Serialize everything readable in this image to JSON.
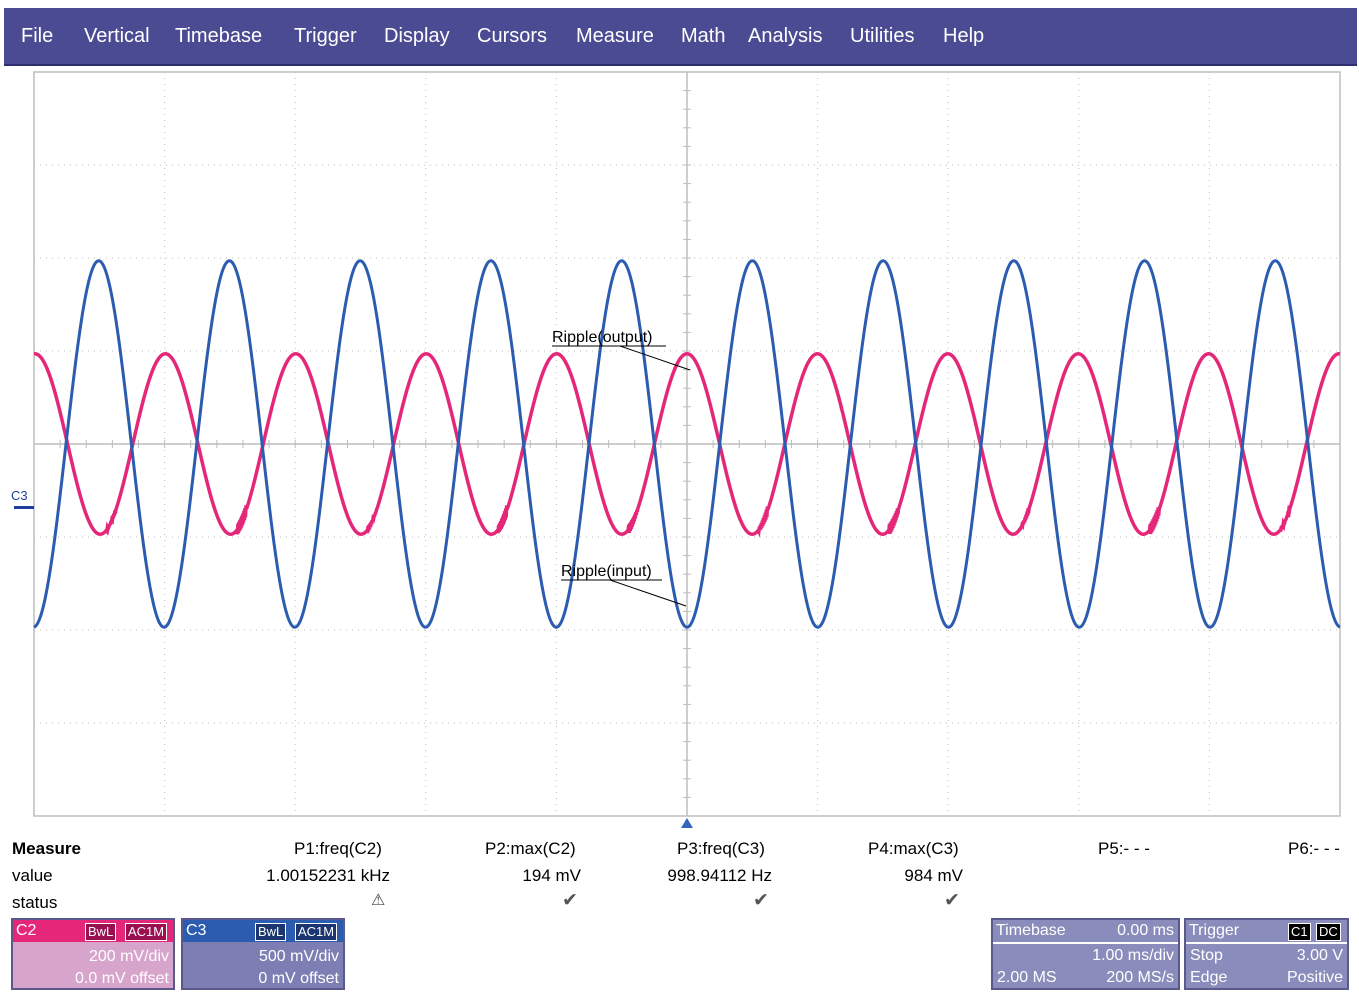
{
  "menu": {
    "items": [
      "File",
      "Vertical",
      "Timebase",
      "Trigger",
      "Display",
      "Cursors",
      "Measure",
      "Math",
      "Analysis",
      "Utilities",
      "Help"
    ]
  },
  "colors": {
    "menu_bg": "#4b4b93",
    "c2_trace": "#e5277a",
    "c3_trace": "#2b5cb0",
    "grid": "#bdbdbd",
    "c2_desc_bg": "#d7a4cc",
    "c3_desc_bg": "#7d7fb4"
  },
  "scope": {
    "channel_marker": "C3",
    "annotations": {
      "output_label": "Ripple(output)",
      "input_label": "Ripple(input)"
    }
  },
  "measure": {
    "title": "Measure",
    "row_labels": {
      "value": "value",
      "status": "status"
    },
    "params": [
      {
        "name": "P1:freq(C2)",
        "value": "1.00152231 kHz",
        "status": "warning-icon"
      },
      {
        "name": "P2:max(C2)",
        "value": "194 mV",
        "status": "check-icon"
      },
      {
        "name": "P3:freq(C3)",
        "value": "998.94112 Hz",
        "status": "check-icon"
      },
      {
        "name": "P4:max(C3)",
        "value": "984 mV",
        "status": "check-icon"
      },
      {
        "name": "P5:- - -",
        "value": "",
        "status": ""
      },
      {
        "name": "P6:- - -",
        "value": "",
        "status": ""
      }
    ]
  },
  "channels": {
    "c2": {
      "label": "C2",
      "bwl": "BwL",
      "coupling": "AC1M",
      "scale": "200 mV/div",
      "offset": "0.0 mV offset"
    },
    "c3": {
      "label": "C3",
      "bwl": "BwL",
      "coupling": "AC1M",
      "scale": "500 mV/div",
      "offset": "0 mV offset"
    }
  },
  "timebase": {
    "title": "Timebase",
    "delay": "0.00 ms",
    "scale": "1.00 ms/div",
    "memory": "2.00 MS",
    "rate": "200 MS/s"
  },
  "trigger": {
    "title": "Trigger",
    "source": "C1",
    "coupling": "DC",
    "mode": "Stop",
    "level": "3.00 V",
    "type": "Edge",
    "slope": "Positive"
  },
  "chart_data": {
    "type": "line",
    "xlabel": "",
    "ylabel": "",
    "grid": true,
    "x_divisions": 10,
    "y_divisions": 8,
    "series": [
      {
        "name": "C2",
        "color": "#e5277a",
        "frequency_hz": 1001.52231,
        "amplitude_v": 0.194,
        "amplitude_div": 0.97,
        "phase_at_center": "max"
      },
      {
        "name": "C3",
        "color": "#2b5cb0",
        "frequency_hz": 998.94112,
        "amplitude_v": 0.984,
        "amplitude_div": 1.97,
        "phase_at_center": "min"
      }
    ]
  }
}
